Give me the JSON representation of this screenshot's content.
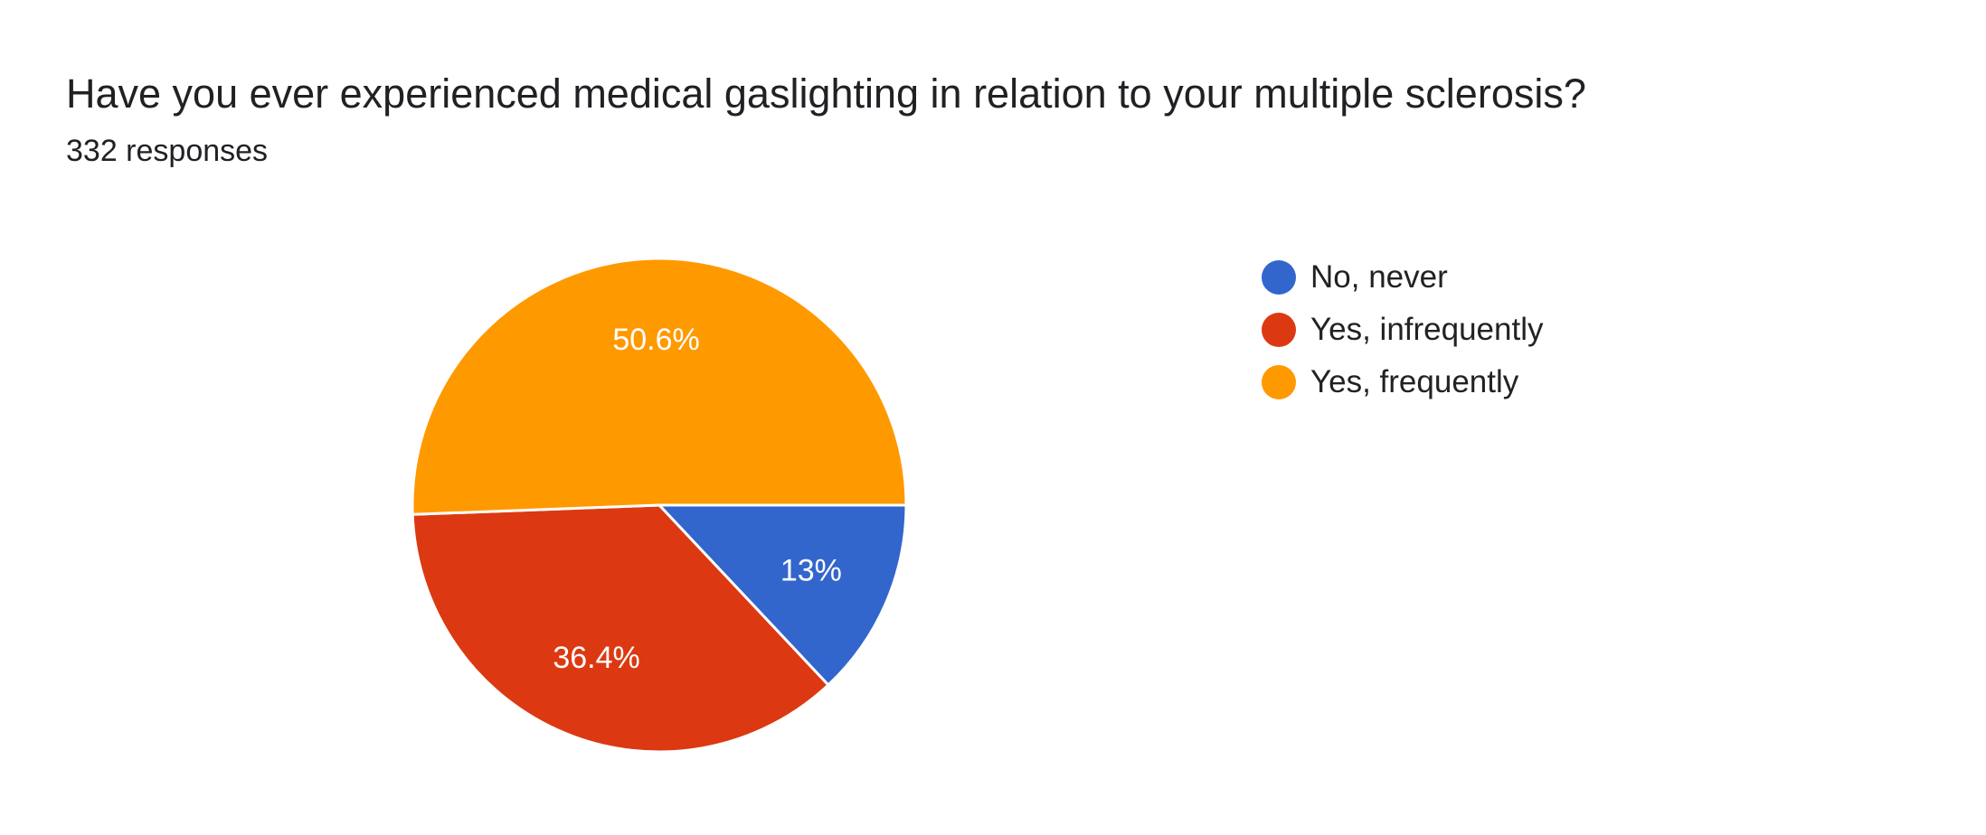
{
  "question": {
    "title": "Have you ever experienced medical gaslighting in relation to your multiple sclerosis?",
    "responses_label": "332 responses"
  },
  "chart_data": {
    "type": "pie",
    "categories": [
      "No, never",
      "Yes, infrequently",
      "Yes, frequently"
    ],
    "values": [
      13.0,
      36.4,
      50.6
    ],
    "data_labels": [
      "13%",
      "36.4%",
      "50.6%"
    ],
    "colors": [
      "#3366cc",
      "#dc3912",
      "#ff9900"
    ],
    "legend_position": "right",
    "title": "Have you ever experienced medical gaslighting in relation to your multiple sclerosis?"
  }
}
